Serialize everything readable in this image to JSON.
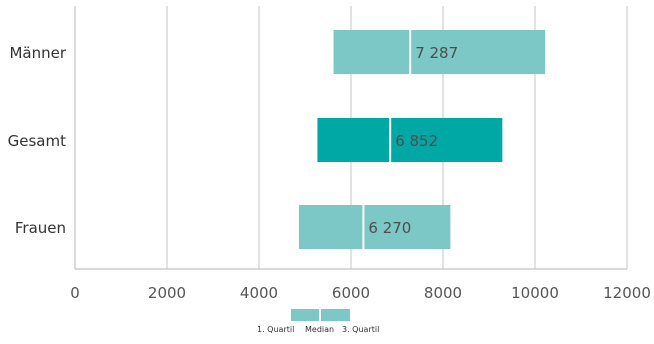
{
  "chart_data": {
    "type": "bar",
    "subtype": "floating-quartile-range",
    "title": "",
    "xlabel": "",
    "ylabel": "",
    "categories": [
      "Männer",
      "Gesamt",
      "Frauen"
    ],
    "series": [
      {
        "name": "1. Quartil",
        "values": [
          5620,
          5270,
          4870
        ]
      },
      {
        "name": "Median",
        "values": [
          7287,
          6852,
          6270
        ]
      },
      {
        "name": "3. Quartil",
        "values": [
          10220,
          9290,
          8160
        ]
      }
    ],
    "median_labels": [
      "7 287",
      "6 852",
      "6 270"
    ],
    "xlim": [
      0,
      12000
    ],
    "xticks": [
      0,
      2000,
      4000,
      6000,
      8000,
      10000,
      12000
    ],
    "xtick_labels": [
      "0",
      "2000",
      "4000",
      "6000",
      "8000",
      "10000",
      "12000"
    ],
    "grid": true,
    "legend_position": "bottom",
    "colors": {
      "bar": "#7cc8c7",
      "highlight_bar": "#00a8a5",
      "median_line": "#ffffff",
      "grid": "#c6c6c6",
      "axis": "#b5b5b5"
    },
    "highlight_category": "Gesamt"
  },
  "legend": {
    "q1_label": "1. Quartil",
    "median_label": "Median",
    "q3_label": "3. Quartil"
  }
}
